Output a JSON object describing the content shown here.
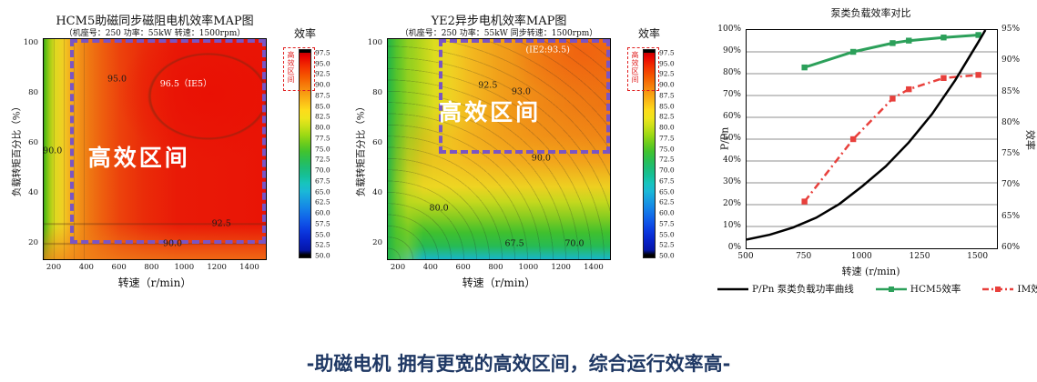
{
  "caption": {
    "text": "-助磁电机 拥有更宽的高效区间，综合运行效率高-",
    "color": "#1f3864"
  },
  "colorbar": {
    "title": "效率",
    "region_label": "高效区间",
    "region_box_color": "#e02020",
    "tick_labels": [
      "97.5",
      "95.0",
      "92.5",
      "90.0",
      "87.5",
      "85.0",
      "82.5",
      "80.0",
      "77.5",
      "75.0",
      "72.5",
      "70.0",
      "67.5",
      "65.0",
      "62.5",
      "60.0",
      "57.5",
      "55.0",
      "52.5",
      "50.0"
    ]
  },
  "chart_data": [
    {
      "type": "contour_map",
      "title": "HCM5助磁同步磁阻电机效率MAP图",
      "subtitle": "（机座号：250  功率：55kW  转速：1500rpm）",
      "xlabel": "转速（r/min）",
      "ylabel": "负载转矩百分比（%）",
      "x_ticks": [
        "200",
        "400",
        "600",
        "800",
        "1000",
        "1200",
        "1400"
      ],
      "y_ticks": [
        "100",
        "80",
        "60",
        "40",
        "20"
      ],
      "xlim": [
        130,
        1500
      ],
      "ylim": [
        13,
        100
      ],
      "colorbar_label": "效率",
      "region_label": "高效区间",
      "region_box_color": "#7a55c4",
      "region_box": {
        "x_pct": 12,
        "y_pct": 0,
        "w_pct": 88,
        "h_pct": 93
      },
      "contour_labels": [
        {
          "text": "95.0",
          "x_pct": 33,
          "y_pct": 18,
          "color": "#1a1a1a"
        },
        {
          "text": "96.5（IE5）",
          "x_pct": 64,
          "y_pct": 20,
          "color": "#ffffff"
        },
        {
          "text": "90.0",
          "x_pct": 4,
          "y_pct": 51,
          "color": "#1a1a1a"
        },
        {
          "text": "92.5",
          "x_pct": 80,
          "y_pct": 84,
          "color": "#1a1a1a"
        },
        {
          "text": "90.0",
          "x_pct": 58,
          "y_pct": 93,
          "color": "#1a1a1a"
        }
      ]
    },
    {
      "type": "contour_map",
      "title": "YE2异步电机效率MAP图",
      "subtitle": "（机座号：250  功率：55kW  同步转速：1500rpm）",
      "xlabel": "转速（r/min）",
      "ylabel": "负载转矩百分比（%）",
      "x_ticks": [
        "200",
        "400",
        "600",
        "800",
        "1000",
        "1200",
        "1400"
      ],
      "y_ticks": [
        "100",
        "80",
        "60",
        "40",
        "20"
      ],
      "xlim": [
        130,
        1500
      ],
      "ylim": [
        13,
        100
      ],
      "colorbar_label": "效率",
      "region_label": "高效区间",
      "region_box_color": "#7a55c4",
      "region_box": {
        "x_pct": 23,
        "y_pct": 0,
        "w_pct": 77,
        "h_pct": 52
      },
      "contour_labels": [
        {
          "text": "(IE2:93.5)",
          "x_pct": 72,
          "y_pct": 5,
          "color": "#ffffff"
        },
        {
          "text": "92.5",
          "x_pct": 45,
          "y_pct": 21,
          "color": "#1a1a1a"
        },
        {
          "text": "93.0",
          "x_pct": 60,
          "y_pct": 24,
          "color": "#1a1a1a"
        },
        {
          "text": "90.0",
          "x_pct": 69,
          "y_pct": 54,
          "color": "#1a1a1a"
        },
        {
          "text": "80.0",
          "x_pct": 23,
          "y_pct": 77,
          "color": "#1a1a1a"
        },
        {
          "text": "67.5",
          "x_pct": 57,
          "y_pct": 93,
          "color": "#1a1a1a"
        },
        {
          "text": "70.0",
          "x_pct": 84,
          "y_pct": 93,
          "color": "#1a1a1a"
        }
      ]
    },
    {
      "type": "line",
      "title": "泵类负载效率对比",
      "xlabel": "转速 (r/min)",
      "ylabel_left": "P/Pn",
      "ylabel_right": "效率",
      "xlim": [
        500,
        1580
      ],
      "x_ticks": [
        "500",
        "750",
        "1000",
        "1250",
        "1500"
      ],
      "ylim_left": [
        0,
        100
      ],
      "y_ticks_left": [
        "100%",
        "90%",
        "80%",
        "70%",
        "60%",
        "50%",
        "40%",
        "30%",
        "20%",
        "10%",
        "0%"
      ],
      "ylim_right": [
        60,
        95
      ],
      "y_ticks_right": [
        "95%",
        "90%",
        "85%",
        "80%",
        "75%",
        "70%",
        "65%",
        "60%"
      ],
      "grid": "horizontal",
      "legend_position": "bottom",
      "series": [
        {
          "name": "P/Pn 泵类负载功率曲线",
          "axis": "left",
          "color": "#000000",
          "line_style": "solid",
          "marker": "none",
          "x": [
            500,
            600,
            700,
            800,
            900,
            1000,
            1100,
            1200,
            1300,
            1400,
            1500,
            1530
          ],
          "y": [
            4,
            6.2,
            9.5,
            14,
            20.3,
            28.5,
            37.5,
            48.5,
            61.5,
            77,
            94.5,
            100
          ]
        },
        {
          "name": "HCM5效率",
          "axis": "right",
          "color": "#2ca05a",
          "line_style": "solid",
          "marker": "square",
          "x": [
            750,
            960,
            1130,
            1200,
            1350,
            1500
          ],
          "y": [
            89,
            91.5,
            92.9,
            93.3,
            93.8,
            94.2
          ]
        },
        {
          "name": "IM效率",
          "axis": "right",
          "color": "#e8403c",
          "line_style": "dash-dot",
          "marker": "square",
          "x": [
            750,
            960,
            1130,
            1200,
            1350,
            1500
          ],
          "y": [
            67.5,
            77.5,
            84,
            85.5,
            87.3,
            87.8
          ]
        }
      ]
    }
  ]
}
